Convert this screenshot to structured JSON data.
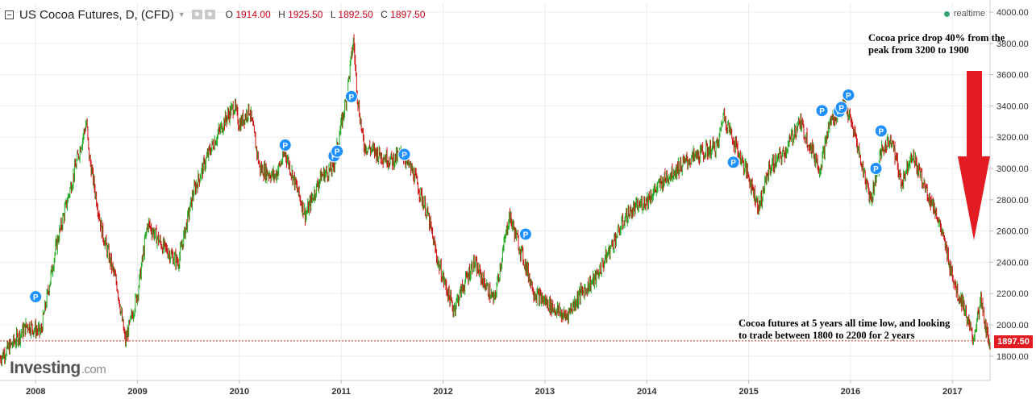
{
  "header": {
    "title": "US Cocoa Futures, D, (CFD)",
    "open_label": "O",
    "open": "1914.00",
    "high_label": "H",
    "high": "1925.50",
    "low_label": "L",
    "low": "1892.50",
    "close_label": "C",
    "close": "1897.50",
    "realtime": "realtime"
  },
  "annotations": {
    "top_right": "Cocoa price drop 40% from the peak from 3200 to 1900",
    "bottom_right": "Cocoa futures at 5 years all time low, and looking to trade between 1800 to 2200 for 2 years"
  },
  "logo": {
    "main": "Investing",
    "suffix": ".com"
  },
  "last_price": "1897.50",
  "colors": {
    "up": "#22aa22",
    "down": "#cc1111",
    "marker": "#1e90ff",
    "arrow": "#e31b23",
    "last_line": "#c0392b"
  },
  "chart_data": {
    "type": "line",
    "style": "candlestick",
    "ylim": [
      1680,
      4080
    ],
    "xlim": [
      2007.65,
      2017.37
    ],
    "y_ticks": [
      "4000.00",
      "3800.00",
      "3600.00",
      "3400.00",
      "3200.00",
      "3000.00",
      "2800.00",
      "2600.00",
      "2400.00",
      "2200.00",
      "2000.00",
      "1800.00"
    ],
    "y_tick_values": [
      4000,
      3800,
      3600,
      3400,
      3200,
      3000,
      2800,
      2600,
      2400,
      2200,
      2000,
      1800
    ],
    "x_ticks": [
      "2008",
      "2009",
      "2010",
      "2011",
      "2012",
      "2013",
      "2014",
      "2015",
      "2016",
      "2017"
    ],
    "x_tick_values": [
      2008,
      2009,
      2010,
      2011,
      2012,
      2013,
      2014,
      2015,
      2016,
      2017
    ],
    "grid": true,
    "series": [
      {
        "x": [
          2007.65,
          2007.8,
          2007.92,
          2008.05,
          2008.2,
          2008.35,
          2008.5,
          2008.52,
          2008.65,
          2008.8,
          2008.88,
          2009.0,
          2009.1,
          2009.25,
          2009.4,
          2009.55,
          2009.7,
          2009.85,
          2009.95,
          2010.0,
          2010.1,
          2010.2,
          2010.35,
          2010.45,
          2010.55,
          2010.65,
          2010.8,
          2010.92,
          2011.05,
          2011.12,
          2011.16,
          2011.22,
          2011.35,
          2011.5,
          2011.6,
          2011.72,
          2011.85,
          2011.95,
          2012.1,
          2012.3,
          2012.5,
          2012.65,
          2012.75,
          2012.9,
          2013.0,
          2013.1,
          2013.2,
          2013.35,
          2013.5,
          2013.65,
          2013.8,
          2014.0,
          2014.2,
          2014.4,
          2014.55,
          2014.7,
          2014.75,
          2014.9,
          2015.0,
          2015.1,
          2015.2,
          2015.35,
          2015.5,
          2015.6,
          2015.7,
          2015.8,
          2015.9,
          2015.95,
          2016.05,
          2016.1,
          2016.2,
          2016.3,
          2016.4,
          2016.5,
          2016.6,
          2016.75,
          2016.85,
          2016.95,
          2017.05,
          2017.1,
          2017.2,
          2017.28,
          2017.35
        ],
        "values": [
          1790,
          1900,
          2000,
          1950,
          2500,
          2900,
          3300,
          3100,
          2600,
          2250,
          1890,
          2200,
          2650,
          2500,
          2400,
          2850,
          3100,
          3300,
          3400,
          3280,
          3380,
          3000,
          2950,
          3100,
          2900,
          2700,
          2950,
          3000,
          3450,
          3820,
          3450,
          3150,
          3100,
          3050,
          3100,
          2950,
          2700,
          2400,
          2100,
          2400,
          2150,
          2700,
          2500,
          2200,
          2150,
          2100,
          2050,
          2200,
          2300,
          2500,
          2700,
          2800,
          2950,
          3050,
          3100,
          3150,
          3350,
          3100,
          2950,
          2750,
          3000,
          3100,
          3300,
          3150,
          3000,
          3300,
          3380,
          3400,
          3200,
          3050,
          2800,
          3100,
          3200,
          2900,
          3100,
          2850,
          2700,
          2450,
          2200,
          2150,
          1900,
          2150,
          1900
        ],
        "x_granularity": "approximate, read off the chart"
      }
    ],
    "p_markers": [
      {
        "x": 2008.0,
        "y": 2180
      },
      {
        "x": 2010.45,
        "y": 3150
      },
      {
        "x": 2010.93,
        "y": 3080
      },
      {
        "x": 2010.96,
        "y": 3110
      },
      {
        "x": 2011.1,
        "y": 3460
      },
      {
        "x": 2011.62,
        "y": 3090
      },
      {
        "x": 2012.81,
        "y": 2580
      },
      {
        "x": 2014.85,
        "y": 3040
      },
      {
        "x": 2015.72,
        "y": 3370
      },
      {
        "x": 2015.89,
        "y": 3365
      },
      {
        "x": 2015.91,
        "y": 3390
      },
      {
        "x": 2015.98,
        "y": 3470
      },
      {
        "x": 2016.25,
        "y": 3000
      },
      {
        "x": 2016.3,
        "y": 3240
      }
    ],
    "marker_label": "P",
    "last_line_value": 1897.5
  }
}
